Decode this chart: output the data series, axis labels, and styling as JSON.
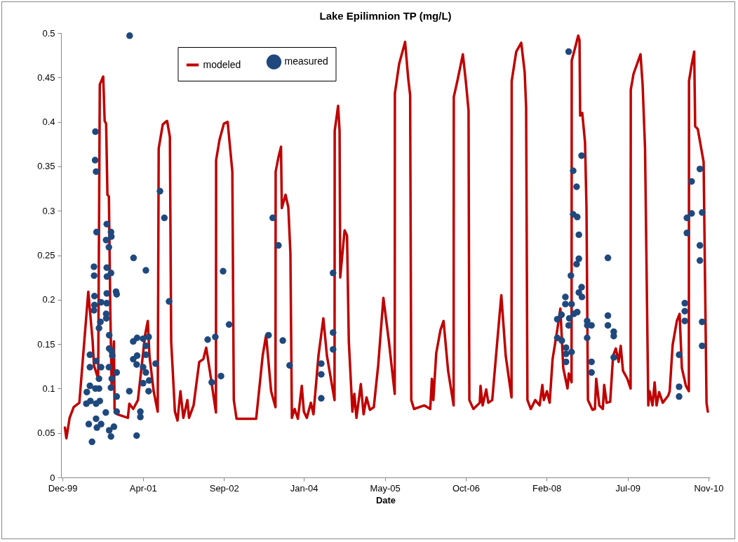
{
  "chart_data": {
    "type": "line",
    "title": "Lake Epilimnion TP (mg/L)",
    "xlabel": "Date",
    "xlim": [
      "1999-12-11",
      "2010-11-23"
    ],
    "xticks": [
      {
        "value": "1999-12-20",
        "label": "Dec-99"
      },
      {
        "value": "2001-04-29",
        "label": "Apr-01"
      },
      {
        "value": "2002-09-10",
        "label": "Sep-02"
      },
      {
        "value": "2004-01-16",
        "label": "Jan-04"
      },
      {
        "value": "2005-05-29",
        "label": "May-05"
      },
      {
        "value": "2006-10-10",
        "label": "Oct-06"
      },
      {
        "value": "2008-02-20",
        "label": "Feb-08"
      },
      {
        "value": "2009-07-04",
        "label": "Jul-09"
      },
      {
        "value": "2010-11-14",
        "label": "Nov-10"
      }
    ],
    "ylim": [
      0,
      0.5
    ],
    "yticks": [
      0,
      0.05,
      0.1,
      0.15,
      0.2,
      0.25,
      0.3,
      0.35,
      0.4,
      0.45,
      0.5
    ],
    "grid": false,
    "legend": "top",
    "series": [
      {
        "name": "modeled",
        "type": "line",
        "color": "#c00000",
        "x": [
          "2000-01-04",
          "2000-01-13",
          "2000-02-02",
          "2000-02-27",
          "2000-04-02",
          "2000-05-27",
          "2000-06-23",
          "2000-07-01",
          "2000-07-27",
          "2000-08-06",
          "2000-08-27",
          "2000-09-05",
          "2000-09-14",
          "2000-09-22",
          "2000-10-01",
          "2000-10-10",
          "2000-10-18",
          "2000-11-01",
          "2000-11-05",
          "2000-11-22",
          "2001-01-26",
          "2001-02-04",
          "2001-02-28",
          "2001-03-29",
          "2001-05-12",
          "2001-05-29",
          "2001-06-08",
          "2001-07-04",
          "2001-07-29",
          "2001-08-04",
          "2001-08-29",
          "2001-09-16",
          "2001-09-25",
          "2001-10-12",
          "2001-10-20",
          "2001-11-12",
          "2001-11-28",
          "2001-12-16",
          "2002-01-03",
          "2002-01-28",
          "2002-02-07",
          "2002-03-07",
          "2002-04-11",
          "2002-05-06",
          "2002-05-24",
          "2002-06-15",
          "2002-07-23",
          "2002-07-24",
          "2002-08-14",
          "2002-09-10",
          "2002-10-03",
          "2002-11-01",
          "2002-11-10",
          "2002-11-27",
          "2003-03-28",
          "2003-05-07",
          "2003-05-28",
          "2003-06-28",
          "2003-07-25",
          "2003-07-26",
          "2003-08-12",
          "2003-08-28",
          "2003-09-02",
          "2003-09-25",
          "2003-10-12",
          "2003-10-25",
          "2003-11-03",
          "2003-11-20",
          "2003-12-10",
          "2004-01-03",
          "2004-01-16",
          "2004-02-03",
          "2004-02-28",
          "2004-03-15",
          "2004-04-15",
          "2004-05-15",
          "2004-06-06",
          "2004-07-23",
          "2004-07-24",
          "2004-08-14",
          "2004-08-23",
          "2004-08-27",
          "2004-09-23",
          "2004-10-08",
          "2004-10-19",
          "2004-11-10",
          "2004-11-22",
          "2004-12-05",
          "2005-01-01",
          "2005-01-18",
          "2005-02-05",
          "2005-02-26",
          "2005-03-22",
          "2005-04-18",
          "2005-05-20",
          "2005-06-23",
          "2005-07-29",
          "2005-07-30",
          "2005-08-25",
          "2005-10-01",
          "2005-10-20",
          "2005-11-01",
          "2005-11-08",
          "2005-11-25",
          "2006-01-28",
          "2006-03-05",
          "2006-03-15",
          "2006-03-24",
          "2006-04-11",
          "2006-05-07",
          "2006-05-26",
          "2006-06-23",
          "2006-07-27",
          "2006-07-28",
          "2006-08-19",
          "2006-09-22",
          "2006-10-10",
          "2006-10-27",
          "2006-11-01",
          "2006-11-26",
          "2007-01-04",
          "2007-01-09",
          "2007-01-22",
          "2007-02-13",
          "2007-02-26",
          "2007-03-22",
          "2007-04-22",
          "2007-05-17",
          "2007-06-13",
          "2007-07-19",
          "2007-07-20",
          "2007-08-17",
          "2007-09-17",
          "2007-10-08",
          "2007-10-17",
          "2007-10-25",
          "2007-11-15",
          "2007-12-12",
          "2008-01-08",
          "2008-01-25",
          "2008-02-03",
          "2008-02-22",
          "2008-03-10",
          "2008-03-28",
          "2008-04-26",
          "2008-05-15",
          "2008-06-02",
          "2008-06-28",
          "2008-07-06",
          "2008-07-23",
          "2008-07-24",
          "2008-08-12",
          "2008-09-02",
          "2008-09-10",
          "2008-09-14",
          "2008-09-27",
          "2008-10-14",
          "2008-10-23",
          "2008-11-01",
          "2008-11-29",
          "2008-12-14",
          "2008-12-22",
          "2009-01-10",
          "2009-02-01",
          "2009-02-09",
          "2009-02-24",
          "2009-03-18",
          "2009-04-05",
          "2009-04-22",
          "2009-05-09",
          "2009-05-22",
          "2009-06-05",
          "2009-07-02",
          "2009-07-22",
          "2009-07-23",
          "2009-08-09",
          "2009-09-21",
          "2009-10-04",
          "2009-10-19",
          "2009-11-08",
          "2009-11-16",
          "2009-12-04",
          "2009-12-17",
          "2009-12-29",
          "2010-01-14",
          "2010-02-05",
          "2010-03-11",
          "2010-03-20",
          "2010-04-07",
          "2010-05-03",
          "2010-05-20",
          "2010-06-03",
          "2010-06-28",
          "2010-07-16",
          "2010-07-17",
          "2010-08-03",
          "2010-08-18",
          "2010-08-24",
          "2010-09-09",
          "2010-10-15",
          "2010-11-02",
          "2010-11-10"
        ],
        "values": [
          0.056,
          0.044,
          0.067,
          0.079,
          0.084,
          0.209,
          0.153,
          0.126,
          0.111,
          0.442,
          0.451,
          0.401,
          0.398,
          0.318,
          0.316,
          0.186,
          0.103,
          0.153,
          0.077,
          0.071,
          0.067,
          0.083,
          0.077,
          0.087,
          0.16,
          0.176,
          0.137,
          0.097,
          0.074,
          0.37,
          0.397,
          0.4,
          0.401,
          0.383,
          0.153,
          0.074,
          0.064,
          0.097,
          0.067,
          0.087,
          0.067,
          0.081,
          0.13,
          0.133,
          0.146,
          0.12,
          0.073,
          0.357,
          0.38,
          0.398,
          0.4,
          0.344,
          0.087,
          0.066,
          0.066,
          0.137,
          0.16,
          0.097,
          0.079,
          0.344,
          0.36,
          0.372,
          0.303,
          0.318,
          0.304,
          0.252,
          0.067,
          0.077,
          0.066,
          0.103,
          0.074,
          0.067,
          0.084,
          0.071,
          0.137,
          0.179,
          0.137,
          0.087,
          0.39,
          0.418,
          0.39,
          0.225,
          0.278,
          0.272,
          0.153,
          0.074,
          0.094,
          0.067,
          0.105,
          0.071,
          0.09,
          0.076,
          0.079,
          0.126,
          0.202,
          0.153,
          0.094,
          0.432,
          0.465,
          0.49,
          0.449,
          0.43,
          0.087,
          0.077,
          0.081,
          0.077,
          0.111,
          0.087,
          0.14,
          0.166,
          0.176,
          0.12,
          0.081,
          0.428,
          0.446,
          0.476,
          0.446,
          0.413,
          0.087,
          0.077,
          0.084,
          0.103,
          0.081,
          0.099,
          0.084,
          0.087,
          0.153,
          0.205,
          0.137,
          0.09,
          0.446,
          0.479,
          0.489,
          0.456,
          0.416,
          0.087,
          0.077,
          0.087,
          0.081,
          0.104,
          0.087,
          0.097,
          0.084,
          0.133,
          0.166,
          0.19,
          0.123,
          0.1,
          0.117,
          0.107,
          0.469,
          0.482,
          0.497,
          0.492,
          0.407,
          0.41,
          0.377,
          0.304,
          0.087,
          0.076,
          0.077,
          0.111,
          0.081,
          0.077,
          0.104,
          0.084,
          0.085,
          0.137,
          0.145,
          0.13,
          0.148,
          0.12,
          0.111,
          0.1,
          0.436,
          0.454,
          0.476,
          0.442,
          0.37,
          0.081,
          0.097,
          0.081,
          0.107,
          0.081,
          0.096,
          0.084,
          0.092,
          0.097,
          0.149,
          0.176,
          0.184,
          0.123,
          0.103,
          0.097,
          0.446,
          0.465,
          0.479,
          0.395,
          0.392,
          0.355,
          0.084,
          0.074
        ]
      },
      {
        "name": "measured",
        "type": "scatter",
        "color": "#1f497d",
        "marker": "circle",
        "x": [
          "2001-02-06",
          "2000-07-10",
          "2000-07-08",
          "2000-07-14",
          "2001-08-12",
          "2001-09-08",
          "2000-09-18",
          "2000-07-17",
          "2000-10-14",
          "2000-10-16",
          "2000-09-14",
          "2000-10-01",
          "2001-03-02",
          "2000-07-01",
          "2000-09-18",
          "2001-05-17",
          "2000-07-02",
          "2000-09-19",
          "2000-10-14",
          "2000-11-14",
          "2000-11-18",
          "2000-07-04",
          "2000-09-18",
          "2001-10-07",
          "2000-07-04",
          "2000-07-01",
          "2000-08-14",
          "2000-09-18",
          "2000-09-14",
          "2000-09-15",
          "2000-08-10",
          "2000-08-01",
          "2000-10-03",
          "2000-06-06",
          "2000-10-03",
          "2000-10-18",
          "2000-10-22",
          "2000-06-06",
          "2000-07-14",
          "2000-08-14",
          "2000-10-01",
          "2000-11-18",
          "2000-08-01",
          "2000-10-19",
          "2000-10-14",
          "2000-06-06",
          "2000-05-18",
          "2000-07-10",
          "2000-08-01",
          "2000-05-15",
          "2000-06-09",
          "2000-07-14",
          "2000-08-06",
          "2000-11-18",
          "2000-09-12",
          "2000-11-18",
          "2000-05-30",
          "2000-07-14",
          "2000-08-14",
          "2000-07-19",
          "2000-10-03",
          "2000-11-01",
          "2000-10-14",
          "2000-06-19",
          "2001-02-04",
          "2001-03-21",
          "2001-02-28",
          "2001-03-24",
          "2001-04-30",
          "2001-06-03",
          "2001-05-17",
          "2001-05-17",
          "2001-02-28",
          "2001-03-24",
          "2001-03-21",
          "2001-04-30",
          "2001-05-17",
          "2001-04-30",
          "2001-06-06",
          "2001-06-03",
          "2001-04-13",
          "2001-04-13",
          "2001-07-16",
          "2002-06-02",
          "2002-07-19",
          "2002-06-27",
          "2002-08-23",
          "2002-09-05",
          "2002-10-12",
          "2003-07-08",
          "2003-08-12",
          "2003-06-12",
          "2003-09-08",
          "2003-10-20",
          "2004-07-14",
          "2004-07-14",
          "2004-07-14",
          "2004-05-02",
          "2004-05-02",
          "2004-05-02",
          "2008-07-05",
          "2008-09-23",
          "2008-08-02",
          "2008-08-23",
          "2008-08-02",
          "2008-08-27",
          "2008-09-06",
          "2008-09-06",
          "2008-08-23",
          "2008-07-19",
          "2008-09-23",
          "2008-09-06",
          "2008-09-25",
          "2008-06-15",
          "2008-06-15",
          "2008-07-23",
          "2008-05-22",
          "2008-04-26",
          "2008-07-09",
          "2008-08-06",
          "2008-08-27",
          "2008-07-05",
          "2008-10-27",
          "2008-11-23",
          "2008-10-28",
          "2008-04-26",
          "2008-05-24",
          "2008-10-27",
          "2008-06-19",
          "2008-07-23",
          "2008-06-19",
          "2008-06-19",
          "2008-11-23",
          "2008-11-23",
          "2009-03-04",
          "2009-03-04",
          "2009-03-04",
          "2009-04-09",
          "2009-04-09",
          "2009-04-09",
          "2010-09-22",
          "2010-08-02",
          "2010-07-04",
          "2010-08-02",
          "2010-10-06",
          "2010-07-04",
          "2010-09-22",
          "2010-09-22",
          "2010-06-21",
          "2010-06-21",
          "2010-06-21",
          "2010-10-06",
          "2010-10-06",
          "2010-05-17",
          "2010-05-17",
          "2010-05-17"
        ],
        "values": [
          0.497,
          0.389,
          0.357,
          0.344,
          0.322,
          0.292,
          0.285,
          0.276,
          0.276,
          0.271,
          0.267,
          0.259,
          0.247,
          0.237,
          0.236,
          0.233,
          0.227,
          0.226,
          0.23,
          0.209,
          0.206,
          0.204,
          0.207,
          0.198,
          0.194,
          0.188,
          0.197,
          0.196,
          0.184,
          0.179,
          0.175,
          0.168,
          0.16,
          0.138,
          0.145,
          0.142,
          0.137,
          0.124,
          0.131,
          0.124,
          0.124,
          0.118,
          0.111,
          0.111,
          0.101,
          0.103,
          0.096,
          0.1,
          0.1,
          0.083,
          0.086,
          0.083,
          0.086,
          0.091,
          0.073,
          0.074,
          0.06,
          0.066,
          0.06,
          0.056,
          0.053,
          0.057,
          0.046,
          0.04,
          0.097,
          0.047,
          0.153,
          0.157,
          0.156,
          0.158,
          0.148,
          0.138,
          0.133,
          0.137,
          0.127,
          0.124,
          0.118,
          0.106,
          0.109,
          0.097,
          0.074,
          0.068,
          0.128,
          0.155,
          0.158,
          0.107,
          0.114,
          0.232,
          0.172,
          0.292,
          0.261,
          0.16,
          0.154,
          0.126,
          0.23,
          0.163,
          0.144,
          0.128,
          0.116,
          0.089,
          0.479,
          0.362,
          0.345,
          0.327,
          0.296,
          0.293,
          0.273,
          0.246,
          0.24,
          0.227,
          0.214,
          0.208,
          0.203,
          0.203,
          0.195,
          0.195,
          0.183,
          0.178,
          0.179,
          0.184,
          0.186,
          0.171,
          0.176,
          0.171,
          0.171,
          0.157,
          0.154,
          0.157,
          0.146,
          0.141,
          0.139,
          0.13,
          0.13,
          0.118,
          0.247,
          0.182,
          0.171,
          0.164,
          0.159,
          0.135,
          0.347,
          0.333,
          0.292,
          0.297,
          0.298,
          0.275,
          0.261,
          0.244,
          0.196,
          0.187,
          0.176,
          0.175,
          0.148,
          0.138,
          0.102,
          0.091
        ]
      }
    ]
  }
}
